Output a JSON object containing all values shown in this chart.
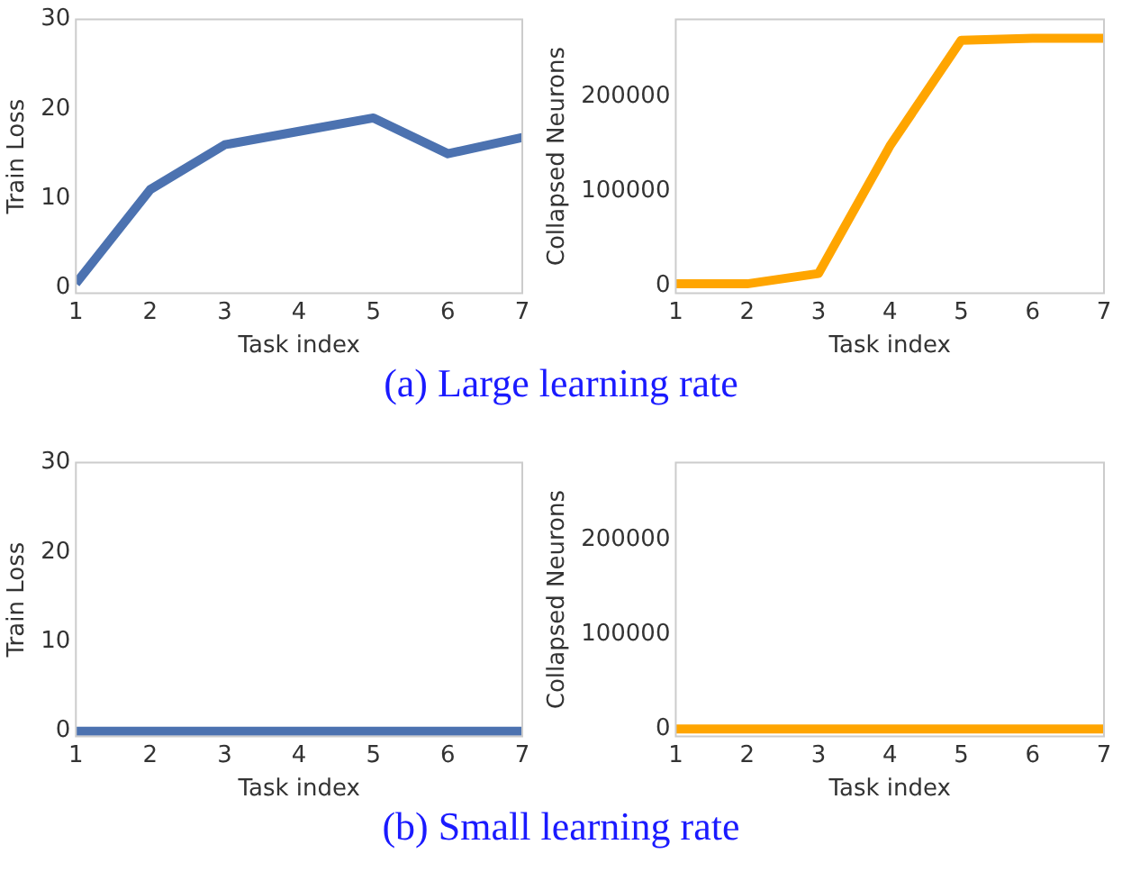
{
  "chart_data": [
    {
      "type": "line",
      "xlabel": "Task index",
      "ylabel": "Train Loss",
      "x": [
        1,
        2,
        3,
        4,
        5,
        6,
        7
      ],
      "series": [
        {
          "color": "#4c72b0",
          "values": [
            0.5,
            11,
            16,
            17.5,
            19,
            15,
            16.8
          ]
        }
      ],
      "xlim": [
        1,
        7
      ],
      "xticks": [
        1,
        2,
        3,
        4,
        5,
        6,
        7
      ],
      "ylim": [
        -0.6,
        30
      ],
      "yticks": [
        0,
        10,
        20,
        30
      ],
      "annotations": [
        "(a) Large learning rate"
      ]
    },
    {
      "type": "line",
      "xlabel": "Task index",
      "ylabel": "Collapsed Neurons",
      "x": [
        1,
        2,
        3,
        4,
        5,
        6,
        7
      ],
      "series": [
        {
          "color": "#ffa500",
          "values": [
            2000,
            2000,
            13000,
            148000,
            260000,
            262000,
            262000
          ]
        }
      ],
      "xlim": [
        1,
        7
      ],
      "xticks": [
        1,
        2,
        3,
        4,
        5,
        6,
        7
      ],
      "ylim": [
        -8000,
        282000
      ],
      "yticks": [
        0,
        100000,
        200000
      ]
    },
    {
      "type": "line",
      "xlabel": "Task index",
      "ylabel": "Train Loss",
      "x": [
        1,
        2,
        3,
        4,
        5,
        6,
        7
      ],
      "series": [
        {
          "color": "#4c72b0",
          "values": [
            0,
            0,
            0,
            0,
            0,
            0,
            0
          ]
        }
      ],
      "xlim": [
        1,
        7
      ],
      "xticks": [
        1,
        2,
        3,
        4,
        5,
        6,
        7
      ],
      "ylim": [
        -0.6,
        30
      ],
      "yticks": [
        0,
        10,
        20,
        30
      ],
      "annotations": [
        "(b) Small learning rate"
      ]
    },
    {
      "type": "line",
      "xlabel": "Task index",
      "ylabel": "Collapsed Neurons",
      "x": [
        1,
        2,
        3,
        4,
        5,
        6,
        7
      ],
      "series": [
        {
          "color": "#ffa500",
          "values": [
            0,
            0,
            0,
            0,
            0,
            0,
            0
          ]
        }
      ],
      "xlim": [
        1,
        7
      ],
      "xticks": [
        1,
        2,
        3,
        4,
        5,
        6,
        7
      ],
      "ylim": [
        -8000,
        282000
      ],
      "yticks": [
        0,
        100000,
        200000
      ]
    }
  ]
}
